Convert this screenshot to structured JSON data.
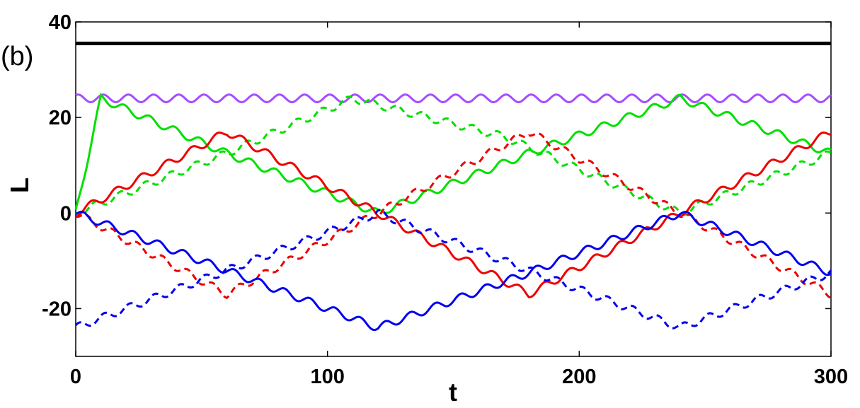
{
  "chart_data": {
    "type": "line",
    "panel_label": "(b)",
    "xlabel": "t",
    "ylabel": "L",
    "xlim": [
      0,
      300
    ],
    "ylim": [
      -30,
      40
    ],
    "xticks": [
      0,
      100,
      200,
      300
    ],
    "yticks": [
      -20,
      0,
      20,
      40
    ],
    "grid": false,
    "legend": "none",
    "series": [
      {
        "color": "#000000",
        "style": "solid",
        "width": 5,
        "x": [
          0,
          300
        ],
        "y": [
          35.5,
          35.5
        ]
      },
      {
        "color": "#a64dff",
        "style": "solid",
        "width": 3,
        "wiggle": {
          "amp": 0.8,
          "period": 10
        },
        "x": [
          0,
          300
        ],
        "y": [
          24,
          24
        ]
      },
      {
        "color": "#00e000",
        "style": "solid",
        "width": 3,
        "wiggle": {
          "amp": 0.8,
          "period": 10
        },
        "x": [
          0,
          10,
          60,
          120,
          180,
          240,
          300
        ],
        "y": [
          0,
          24,
          12.5,
          0,
          12.5,
          24,
          12.5
        ]
      },
      {
        "color": "#00e000",
        "style": "dashed",
        "width": 3,
        "wiggle": {
          "amp": 0.8,
          "period": 10
        },
        "x": [
          0,
          60,
          110,
          170,
          240,
          300
        ],
        "y": [
          0,
          12.5,
          24,
          16,
          0,
          12.5
        ]
      },
      {
        "color": "#ee0000",
        "style": "solid",
        "width": 3,
        "wiggle": {
          "amp": 0.8,
          "period": 10
        },
        "x": [
          0,
          60,
          120,
          180,
          240,
          300
        ],
        "y": [
          0,
          17,
          0,
          -17,
          0,
          17
        ]
      },
      {
        "color": "#ee0000",
        "style": "dashed",
        "width": 3,
        "wiggle": {
          "amp": 0.8,
          "period": 10
        },
        "x": [
          0,
          60,
          120,
          180,
          240,
          300
        ],
        "y": [
          0,
          -17,
          0,
          17,
          0,
          -17
        ]
      },
      {
        "color": "#0000ee",
        "style": "solid",
        "width": 3,
        "wiggle": {
          "amp": 0.8,
          "period": 10
        },
        "x": [
          0,
          120,
          180,
          240,
          300
        ],
        "y": [
          0,
          -24,
          -12.5,
          0,
          -12.5
        ]
      },
      {
        "color": "#0000ee",
        "style": "dashed",
        "width": 3,
        "wiggle": {
          "amp": 0.8,
          "period": 10
        },
        "x": [
          0,
          120,
          240,
          300
        ],
        "y": [
          -24,
          0,
          -24,
          -12.5
        ]
      }
    ]
  }
}
